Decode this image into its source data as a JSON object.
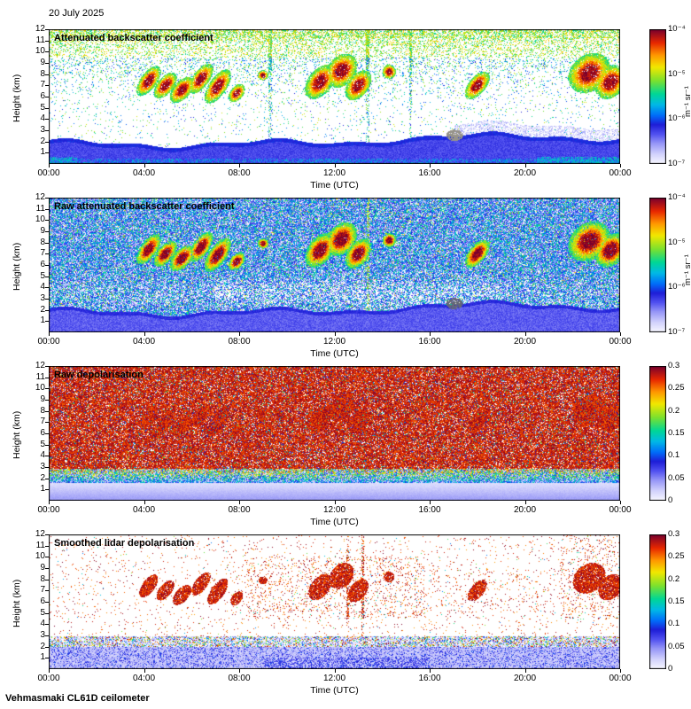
{
  "date_label": "20 July 2025",
  "footer": "Vehmasmaki CL61D ceilometer",
  "axes": {
    "xlabel": "Time (UTC)",
    "ylabel": "Height (km)",
    "x_ticks": [
      "00:00",
      "04:00",
      "08:00",
      "12:00",
      "16:00",
      "20:00",
      "00:00"
    ],
    "y_ticks": [
      "1",
      "2",
      "3",
      "4",
      "5",
      "6",
      "7",
      "8",
      "9",
      "10",
      "11",
      "12"
    ]
  },
  "colorbars": {
    "backscatter": {
      "ticks": [
        "10⁻⁴",
        "10⁻⁵",
        "10⁻⁶",
        "10⁻⁷"
      ],
      "unit": "m⁻¹ sr⁻¹",
      "scale": "log"
    },
    "depol": {
      "ticks": [
        "0.3",
        "0.25",
        "0.2",
        "0.15",
        "0.1",
        "0.05",
        "0"
      ],
      "scale": "linear"
    }
  },
  "panels": [
    {
      "title": "Attenuated backscatter coefficient",
      "style": "backscatter_clean",
      "colorbar": "backscatter",
      "seed": 101
    },
    {
      "title": "Raw attenuated backscatter coefficient",
      "style": "backscatter_raw",
      "colorbar": "backscatter",
      "seed": 202
    },
    {
      "title": "Raw depolarisation",
      "style": "depol_raw",
      "colorbar": "depol",
      "seed": 303
    },
    {
      "title": "Smoothed lidar depolarisation",
      "style": "depol_smooth",
      "colorbar": "depol",
      "seed": 404
    }
  ],
  "chart_data": [
    {
      "type": "heatmap",
      "title": "Attenuated backscatter coefficient",
      "xlabel": "Time (UTC)",
      "ylabel": "Height (km)",
      "x_range_hours": [
        0,
        24
      ],
      "x_tick_labels": [
        "00:00",
        "04:00",
        "08:00",
        "12:00",
        "16:00",
        "20:00",
        "00:00"
      ],
      "y_range_km": [
        0,
        12
      ],
      "colorbar": {
        "scale": "log10",
        "min": 1e-07,
        "max": 0.0001,
        "unit": "m⁻¹ sr⁻¹",
        "tick_labels": [
          "10⁻⁴",
          "10⁻⁵",
          "10⁻⁶",
          "10⁻⁷"
        ]
      },
      "content_summary": "Continuous boundary-layer aerosol band (blue) from the surface up to about 2-2.8 km all day with a darker top edge; nearly clean (white) air aloft with sparse speckle that thickens into pale yellow-green noise near 11-12 km; slanted cloud/virga fall-streaks (green-yellow-orange-red) near 6-9 km around 04-08 h, 11-14 h, 18 h and 22-24 h; small grey cloud patch at about 17 h, 2.5 km; turquoise near-surface layer after about 21 h.",
      "boundary_layer_top_km": [
        2.1,
        2.8
      ],
      "cloud_features": [
        {
          "t": 4.2,
          "h": 7.4,
          "w": 0.28,
          "dh": 1.5,
          "tilt": 2
        },
        {
          "t": 4.9,
          "h": 7.0,
          "w": 0.28,
          "dh": 1.3,
          "tilt": 2
        },
        {
          "t": 5.6,
          "h": 6.6,
          "w": 0.3,
          "dh": 1.3,
          "tilt": 2
        },
        {
          "t": 6.4,
          "h": 7.6,
          "w": 0.28,
          "dh": 1.5,
          "tilt": 2
        },
        {
          "t": 7.1,
          "h": 6.9,
          "w": 0.3,
          "dh": 1.7,
          "tilt": 2
        },
        {
          "t": 7.9,
          "h": 6.3,
          "w": 0.22,
          "dh": 0.9,
          "tilt": 1.5
        },
        {
          "t": 9.0,
          "h": 7.9,
          "w": 0.16,
          "dh": 0.5,
          "tilt": 0
        },
        {
          "t": 11.4,
          "h": 7.3,
          "w": 0.4,
          "dh": 1.7,
          "tilt": 1.5
        },
        {
          "t": 12.3,
          "h": 8.3,
          "w": 0.45,
          "dh": 1.7,
          "tilt": 1
        },
        {
          "t": 13.0,
          "h": 7.0,
          "w": 0.35,
          "dh": 1.5,
          "tilt": 1.5
        },
        {
          "t": 14.3,
          "h": 8.2,
          "w": 0.2,
          "dh": 0.7,
          "tilt": 0
        },
        {
          "t": 18.0,
          "h": 7.0,
          "w": 0.3,
          "dh": 1.4,
          "tilt": 2
        },
        {
          "t": 22.7,
          "h": 8.1,
          "w": 0.6,
          "dh": 2.0,
          "tilt": 1
        },
        {
          "t": 23.6,
          "h": 7.3,
          "w": 0.45,
          "dh": 1.7,
          "tilt": 1
        }
      ],
      "streak_times": [
        9.3,
        13.4,
        15.2
      ],
      "gray_patch": {
        "t": 17.05,
        "h": 2.55
      }
    },
    {
      "type": "heatmap",
      "title": "Raw attenuated backscatter coefficient",
      "xlabel": "Time (UTC)",
      "ylabel": "Height (km)",
      "x_range_hours": [
        0,
        24
      ],
      "y_range_km": [
        0,
        12
      ],
      "colorbar": {
        "scale": "log10",
        "min": 1e-07,
        "max": 0.0001,
        "unit": "m⁻¹ sr⁻¹",
        "tick_labels": [
          "10⁻⁴",
          "10⁻⁵",
          "10⁻⁶",
          "10⁻⁷"
        ]
      },
      "content_summary": "Same scene without noise filtering: dense blue/cyan/green photon-noise speckle at all heights, lighter (whiter) just above the boundary layer during daytime; same orange-red cloud fall-streaks at 6-9 km; smooth blue boundary-layer band below about 2-2.8 km; grey-dark patch near 17 h, 2.5 km.",
      "cloud_features": "same as panel 1",
      "streak_times": [
        13.4
      ]
    },
    {
      "type": "heatmap",
      "title": "Raw depolarisation",
      "xlabel": "Time (UTC)",
      "ylabel": "Height (km)",
      "x_range_hours": [
        0,
        24
      ],
      "y_range_km": [
        0,
        12
      ],
      "colorbar": {
        "scale": "linear",
        "min": 0,
        "max": 0.3,
        "tick_labels": [
          "0.3",
          "0.25",
          "0.2",
          "0.15",
          "0.1",
          "0.05",
          "0"
        ]
      },
      "content_summary": "Uniform high-valued (maroon/purple) noise everywhere above about 3 km with sparse white and blue-green specks; dense multicoloured speckle transition between about 1.6 and 2.9 km; smooth low-depolarisation pale lavender-blue layer below about 1.6 km.",
      "streak_times": []
    },
    {
      "type": "heatmap",
      "title": "Smoothed lidar depolarisation",
      "xlabel": "Time (UTC)",
      "ylabel": "Height (km)",
      "x_range_hours": [
        0,
        24
      ],
      "y_range_km": [
        0,
        12
      ],
      "colorbar": {
        "scale": "linear",
        "min": 0,
        "max": 0.3,
        "tick_labels": [
          "0.3",
          "0.25",
          "0.2",
          "0.15",
          "0.1",
          "0.05",
          "0"
        ]
      },
      "content_summary": "Mostly white above 3 km with sparse maroon speckle; solid maroon patches at the cloud/virga locations (about 4-8 h, 11-14 h, 18 h and 22-24 h at 6-9 km) plus thin vertical dotted streaks near 12.5-13.2 h; colourful speckle band 2-2.9 km; pale lavender low-depolarisation boundary layer below about 2 km with scattered blue dots.",
      "cloud_features": "same as panel 1",
      "streak_times": [
        12.55,
        13.2
      ]
    }
  ]
}
